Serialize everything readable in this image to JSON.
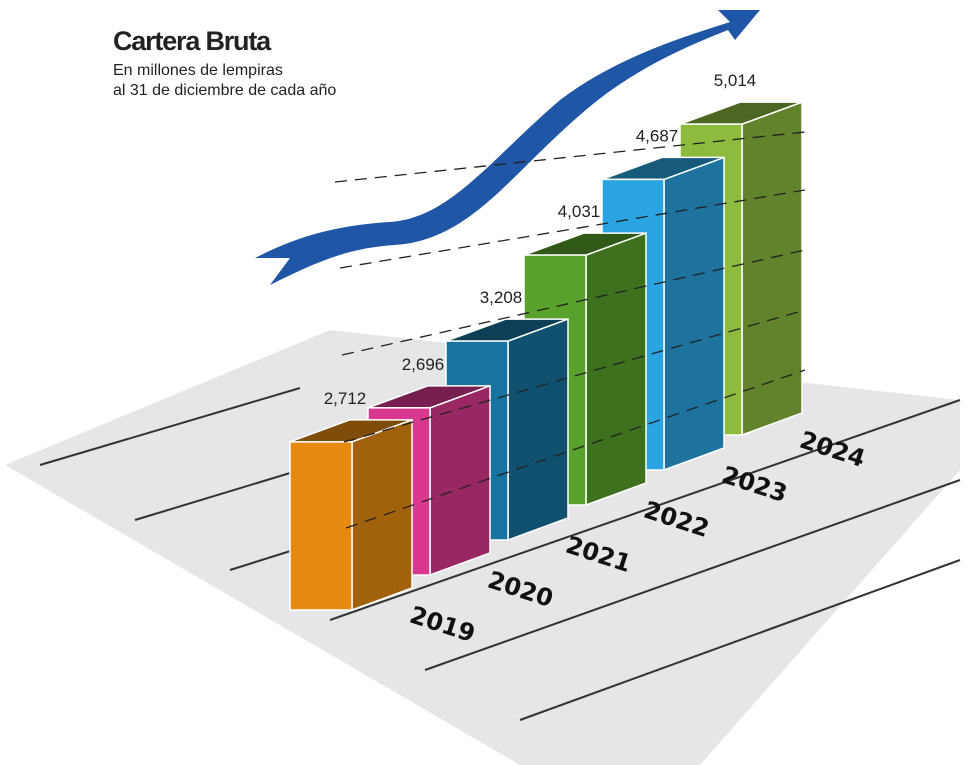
{
  "chart_data": {
    "type": "bar3d",
    "title": "Cartera Bruta",
    "subtitle": [
      "En millones de lempiras",
      "al 31 de diciembre de cada año"
    ],
    "categories": [
      "2019",
      "2020",
      "2021",
      "2022",
      "2023",
      "2024"
    ],
    "values": [
      2712,
      2696,
      3208,
      4031,
      4687,
      5014
    ],
    "value_labels": [
      "2,712",
      "2,696",
      "3,208",
      "4,031",
      "4,687",
      "5,014"
    ],
    "colors": [
      "#e88a10",
      "#d9388f",
      "#17739f",
      "#58a12a",
      "#2aa5e2",
      "#8cbb3e"
    ]
  }
}
